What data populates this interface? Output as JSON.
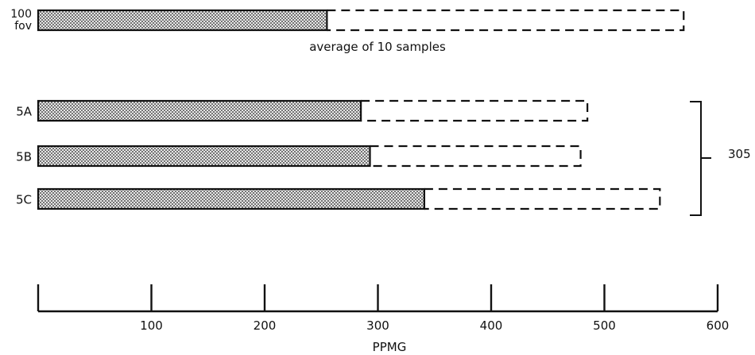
{
  "chart_data": {
    "type": "bar",
    "orientation": "horizontal",
    "stacked": true,
    "categories": [
      "100 fov",
      "5A",
      "5B",
      "5C"
    ],
    "category_lines": [
      [
        "100",
        "fov"
      ],
      [
        "5A"
      ],
      [
        "5B"
      ],
      [
        "5C"
      ]
    ],
    "series": [
      {
        "name": "",
        "style": "solid-stippled",
        "values": [
          255,
          285,
          293,
          341
        ]
      },
      {
        "name": "",
        "style": "dashed-outline",
        "values": [
          315,
          200,
          186,
          208
        ]
      }
    ],
    "x": {
      "label": "PPMG",
      "range": [
        0,
        600
      ],
      "ticks": [
        0,
        100,
        200,
        300,
        400,
        500,
        600
      ],
      "tick_labels": [
        "",
        "100",
        "200",
        "300",
        "400",
        "500",
        "600"
      ]
    },
    "annotations": {
      "note": "average of 10 samples",
      "bracket_value": "305"
    },
    "colors": {
      "ink": "#111111",
      "stipple_dot": "#222222",
      "stipple_bg": "#e6e6e6"
    }
  }
}
